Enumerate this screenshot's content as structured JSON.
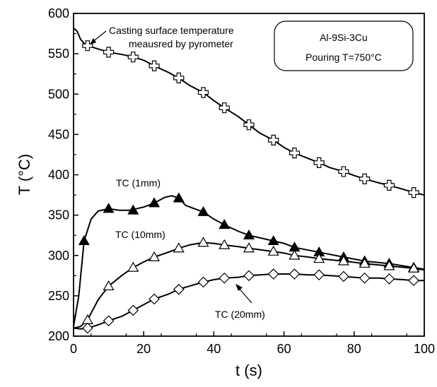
{
  "chart_data": {
    "type": "line",
    "xlabel": "t (s)",
    "ylabel": "T (°C)",
    "xlim": [
      0,
      100
    ],
    "ylim": [
      200,
      600
    ],
    "xticks": [
      0,
      20,
      40,
      60,
      80,
      100
    ],
    "yticks": [
      200,
      250,
      300,
      350,
      400,
      450,
      500,
      550,
      600
    ],
    "grid": false,
    "legend_box": {
      "line1": "Al-9Si-3Cu",
      "line2": "Pouring T=750°C"
    },
    "annotations": {
      "surface_line1": "Casting surface temperature",
      "surface_line2": "meausred by pyrometer",
      "tc1": "TC (1mm)",
      "tc10": "TC (10mm)",
      "tc20": "TC (20mm)"
    },
    "series": [
      {
        "marker": "cross-open",
        "x": [
          0,
          1,
          2,
          3,
          4,
          7,
          10,
          14,
          17,
          20,
          23,
          27,
          30,
          33,
          37,
          40,
          43,
          47,
          50,
          53,
          57,
          60,
          63,
          67,
          70,
          73,
          77,
          80,
          83,
          87,
          90,
          94,
          97,
          100
        ],
        "y": [
          582,
          578,
          568,
          563,
          560,
          556,
          552,
          549,
          546,
          542,
          535,
          527,
          520,
          511,
          502,
          492,
          483,
          472,
          462,
          452,
          443,
          434,
          427,
          420,
          415,
          409,
          404,
          399,
          395,
          390,
          387,
          382,
          378,
          375
        ],
        "markers_x": [
          4,
          10,
          17,
          23,
          30,
          37,
          43,
          50,
          57,
          63,
          70,
          77,
          83,
          90,
          97
        ],
        "markers_y": [
          560,
          552,
          546,
          535,
          520,
          502,
          483,
          462,
          443,
          427,
          415,
          404,
          395,
          387,
          378
        ]
      },
      {
        "marker": "triangle-filled",
        "x": [
          0,
          1.5,
          3,
          5,
          7,
          10,
          13,
          16,
          20,
          23,
          26,
          28,
          30,
          32,
          35,
          37,
          40,
          43,
          47,
          50,
          55,
          60,
          63,
          70,
          77,
          83,
          90,
          97,
          100
        ],
        "y": [
          212,
          250,
          318,
          345,
          355,
          358,
          356,
          356,
          360,
          365,
          372,
          374,
          371,
          362,
          357,
          354,
          345,
          338,
          330,
          325,
          320,
          315,
          310,
          304,
          298,
          293,
          290,
          285,
          283
        ],
        "markers_x": [
          3,
          10,
          17,
          23,
          30,
          37,
          43,
          50,
          57,
          63,
          70,
          77,
          83,
          90,
          97
        ],
        "markers_y": [
          318,
          358,
          356,
          365,
          371,
          354,
          338,
          325,
          318,
          310,
          304,
          298,
          293,
          290,
          285
        ]
      },
      {
        "marker": "triangle-open",
        "x": [
          0,
          2,
          4,
          7,
          10,
          14,
          17,
          20,
          23,
          27,
          30,
          33,
          37,
          40,
          43,
          47,
          50,
          55,
          60,
          63,
          67,
          70,
          77,
          83,
          90,
          97,
          100
        ],
        "y": [
          210,
          212,
          220,
          245,
          262,
          276,
          285,
          292,
          298,
          304,
          309,
          313,
          316,
          315,
          313,
          311,
          309,
          306,
          303,
          300,
          298,
          296,
          293,
          290,
          287,
          284,
          282
        ],
        "markers_x": [
          4,
          10,
          17,
          23,
          30,
          37,
          43,
          50,
          57,
          63,
          70,
          77,
          83,
          90,
          97
        ],
        "markers_y": [
          220,
          262,
          285,
          298,
          309,
          316,
          313,
          309,
          305,
          300,
          296,
          293,
          290,
          287,
          284
        ]
      },
      {
        "marker": "diamond-open",
        "x": [
          0,
          2,
          4,
          7,
          10,
          14,
          17,
          20,
          23,
          27,
          30,
          33,
          37,
          40,
          43,
          47,
          50,
          53,
          57,
          60,
          63,
          67,
          70,
          73,
          77,
          80,
          83,
          87,
          90,
          94,
          97,
          100
        ],
        "y": [
          210,
          209,
          210,
          214,
          219,
          225,
          232,
          239,
          246,
          252,
          258,
          262,
          267,
          270,
          272,
          273,
          275,
          276,
          277,
          277,
          277,
          276,
          276,
          275,
          274,
          273,
          272,
          272,
          271,
          270,
          269,
          269
        ],
        "markers_x": [
          4,
          10,
          17,
          23,
          30,
          37,
          43,
          50,
          57,
          63,
          70,
          77,
          83,
          90,
          97
        ],
        "markers_y": [
          210,
          219,
          232,
          246,
          258,
          267,
          272,
          275,
          277,
          277,
          276,
          274,
          272,
          271,
          269
        ]
      }
    ]
  }
}
